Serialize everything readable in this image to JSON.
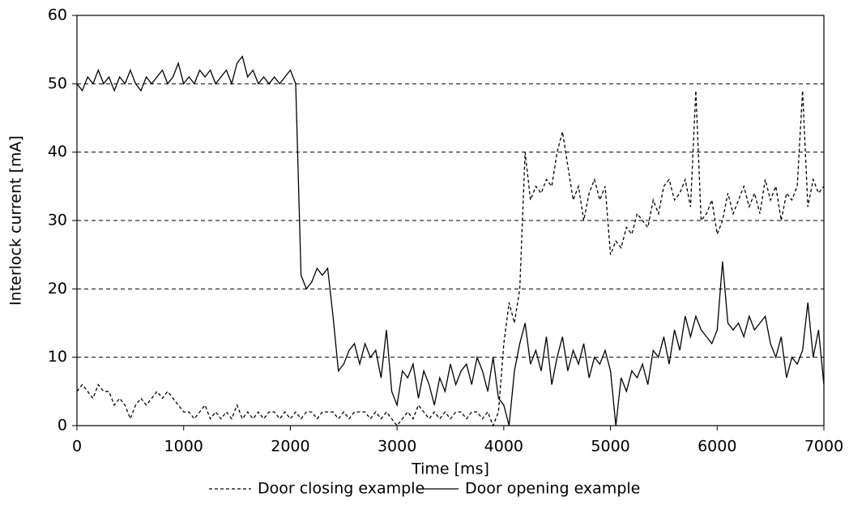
{
  "chart_data": {
    "type": "line",
    "xlabel": "Time [ms]",
    "ylabel": "Interlock current [mA]",
    "xlim": [
      0,
      7000
    ],
    "ylim": [
      0,
      60
    ],
    "xticks": [
      0,
      1000,
      2000,
      3000,
      4000,
      5000,
      6000,
      7000
    ],
    "yticks": [
      0,
      10,
      20,
      30,
      40,
      50,
      60
    ],
    "grid": true,
    "legend": "bottom",
    "x": [
      0,
      50,
      100,
      150,
      200,
      250,
      300,
      350,
      400,
      450,
      500,
      550,
      600,
      650,
      700,
      750,
      800,
      850,
      900,
      950,
      1000,
      1050,
      1100,
      1150,
      1200,
      1250,
      1300,
      1350,
      1400,
      1450,
      1500,
      1550,
      1600,
      1650,
      1700,
      1750,
      1800,
      1850,
      1900,
      1950,
      2000,
      2050,
      2100,
      2150,
      2200,
      2250,
      2300,
      2350,
      2400,
      2450,
      2500,
      2550,
      2600,
      2650,
      2700,
      2750,
      2800,
      2850,
      2900,
      2950,
      3000,
      3050,
      3100,
      3150,
      3200,
      3250,
      3300,
      3350,
      3400,
      3450,
      3500,
      3550,
      3600,
      3650,
      3700,
      3750,
      3800,
      3850,
      3900,
      3950,
      4000,
      4050,
      4100,
      4150,
      4200,
      4250,
      4300,
      4350,
      4400,
      4450,
      4500,
      4550,
      4600,
      4650,
      4700,
      4750,
      4800,
      4850,
      4900,
      4950,
      5000,
      5050,
      5100,
      5150,
      5200,
      5250,
      5300,
      5350,
      5400,
      5450,
      5500,
      5550,
      5600,
      5650,
      5700,
      5750,
      5800,
      5850,
      5900,
      5950,
      6000,
      6050,
      6100,
      6150,
      6200,
      6250,
      6300,
      6350,
      6400,
      6450,
      6500,
      6550,
      6600,
      6650,
      6700,
      6750,
      6800,
      6850,
      6900,
      6950,
      7000
    ],
    "series": [
      {
        "name": "Door closing example",
        "color": "#000000",
        "dash": true,
        "values": [
          5,
          6,
          5,
          4,
          6,
          5,
          5,
          3,
          4,
          3,
          1,
          3,
          4,
          3,
          4,
          5,
          4,
          5,
          4,
          3,
          2,
          2,
          1,
          2,
          3,
          1,
          2,
          1,
          2,
          1,
          3,
          1,
          2,
          1,
          2,
          1,
          2,
          2,
          1,
          2,
          1,
          2,
          1,
          2,
          2,
          1,
          2,
          2,
          2,
          1,
          2,
          1,
          2,
          2,
          2,
          1,
          2,
          1,
          2,
          1,
          0,
          1,
          2,
          1,
          3,
          2,
          1,
          2,
          1,
          2,
          1,
          2,
          2,
          1,
          2,
          2,
          1,
          2,
          0,
          2,
          12,
          18,
          15,
          20,
          40,
          33,
          35,
          34,
          36,
          35,
          40,
          43,
          38,
          33,
          35,
          30,
          34,
          36,
          33,
          35,
          25,
          27,
          26,
          29,
          28,
          31,
          30,
          29,
          33,
          31,
          35,
          36,
          33,
          34,
          36,
          32,
          49,
          30,
          31,
          33,
          28,
          30,
          34,
          31,
          33,
          35,
          32,
          34,
          31,
          36,
          33,
          35,
          30,
          34,
          33,
          35,
          49,
          32,
          36,
          34,
          35
        ]
      },
      {
        "name": "Door opening example",
        "color": "#000000",
        "dash": false,
        "values": [
          50,
          49,
          51,
          50,
          52,
          50,
          51,
          49,
          51,
          50,
          52,
          50,
          49,
          51,
          50,
          51,
          52,
          50,
          51,
          53,
          50,
          51,
          50,
          52,
          51,
          52,
          50,
          51,
          52,
          50,
          53,
          54,
          51,
          52,
          50,
          51,
          50,
          51,
          50,
          51,
          52,
          50,
          22,
          20,
          21,
          23,
          22,
          23,
          16,
          8,
          9,
          11,
          12,
          9,
          12,
          10,
          11,
          7,
          14,
          5,
          3,
          8,
          7,
          9,
          4,
          8,
          6,
          3,
          7,
          5,
          9,
          6,
          8,
          9,
          6,
          10,
          8,
          5,
          10,
          4,
          3,
          0,
          8,
          12,
          15,
          9,
          11,
          8,
          13,
          6,
          10,
          13,
          8,
          11,
          9,
          12,
          7,
          10,
          9,
          11,
          8,
          0,
          7,
          5,
          8,
          7,
          9,
          6,
          11,
          10,
          13,
          9,
          14,
          11,
          16,
          13,
          16,
          14,
          13,
          12,
          14,
          24,
          15,
          14,
          15,
          13,
          16,
          14,
          15,
          16,
          12,
          10,
          13,
          7,
          10,
          9,
          11,
          18,
          10,
          14,
          6
        ]
      }
    ]
  }
}
